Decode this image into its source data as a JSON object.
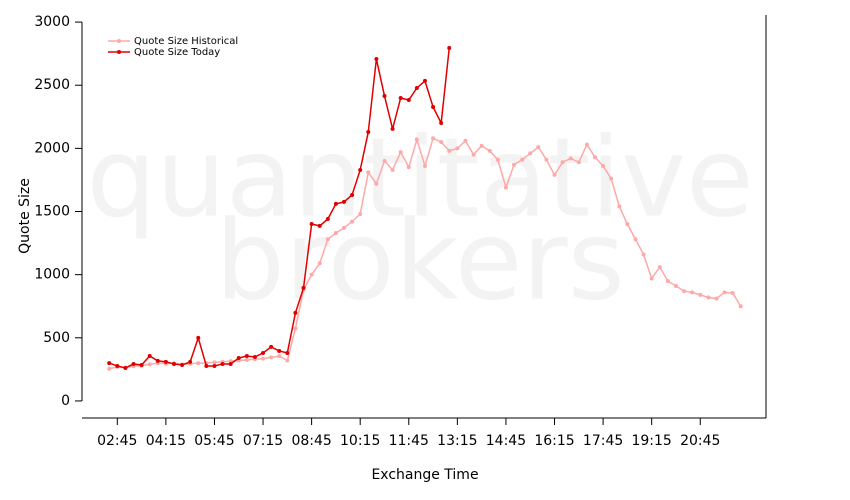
{
  "chart_data": {
    "type": "line",
    "watermark": [
      "quantitative",
      "brokers"
    ],
    "x_label": "Exchange Time",
    "y_label": "Quote Size",
    "x": [
      2.5,
      2.75,
      3,
      3.25,
      3.5,
      3.75,
      4,
      4.25,
      4.5,
      4.75,
      5,
      5.25,
      5.5,
      5.75,
      6,
      6.25,
      6.5,
      6.75,
      7,
      7.25,
      7.5,
      7.75,
      8,
      8.25,
      8.5,
      8.75,
      9,
      9.25,
      9.5,
      9.75,
      10,
      10.25,
      10.5,
      10.75,
      11,
      11.25,
      11.5,
      11.75,
      12,
      12.25,
      12.5,
      12.75,
      13,
      13.25,
      13.5,
      13.75,
      14,
      14.25,
      14.5,
      14.75,
      15,
      15.25,
      15.5,
      15.75,
      16,
      16.25,
      16.5,
      16.75,
      17,
      17.25,
      17.5,
      17.75,
      18,
      18.25,
      18.5,
      18.75,
      19,
      19.25,
      19.5,
      19.75,
      20,
      20.25,
      20.5,
      20.75,
      21,
      21.25,
      21.5,
      21.75,
      22
    ],
    "series": [
      {
        "name": "Quote Size Historical",
        "color": "#ffa8a8",
        "values": [
          255,
          270,
          265,
          275,
          280,
          290,
          300,
          295,
          300,
          290,
          295,
          300,
          300,
          305,
          310,
          315,
          320,
          325,
          330,
          335,
          345,
          355,
          320,
          575,
          880,
          1000,
          1090,
          1280,
          1330,
          1370,
          1420,
          1480,
          1810,
          1720,
          1900,
          1830,
          1970,
          1850,
          2070,
          1860,
          2080,
          2050,
          1980,
          2000,
          2060,
          1950,
          2020,
          1980,
          1910,
          1690,
          1870,
          1910,
          1960,
          2010,
          1910,
          1790,
          1890,
          1920,
          1890,
          2030,
          1930,
          1860,
          1760,
          1540,
          1400,
          1280,
          1160,
          970,
          1060,
          950,
          910,
          870,
          860,
          840,
          820,
          810,
          860,
          855,
          750
        ]
      },
      {
        "name": "Quote Size Today",
        "color": "#e00000",
        "values": [
          300,
          277,
          261,
          293,
          285,
          356,
          317,
          309,
          293,
          285,
          309,
          499,
          277,
          277,
          293,
          293,
          340,
          356,
          348,
          380,
          428,
          396,
          380,
          697,
          895,
          1401,
          1386,
          1441,
          1560,
          1576,
          1631,
          1829,
          2130,
          2708,
          2415,
          2154,
          2399,
          2383,
          2478,
          2534,
          2328,
          2201,
          2795,
          null,
          null,
          null,
          null,
          null,
          null,
          null,
          null,
          null,
          null,
          null,
          null,
          null,
          null,
          null,
          null,
          null,
          null,
          null,
          null,
          null,
          null,
          null,
          null,
          null,
          null,
          null,
          null,
          null,
          null,
          null,
          null,
          null,
          null,
          null,
          null
        ]
      }
    ],
    "xlim": [
      1.66,
      22.78
    ],
    "xticks": [
      {
        "value": 2.75,
        "label": "02:45"
      },
      {
        "value": 4.25,
        "label": "04:15"
      },
      {
        "value": 5.75,
        "label": "05:45"
      },
      {
        "value": 7.25,
        "label": "07:15"
      },
      {
        "value": 8.75,
        "label": "08:45"
      },
      {
        "value": 10.25,
        "label": "10:15"
      },
      {
        "value": 11.75,
        "label": "11:45"
      },
      {
        "value": 13.25,
        "label": "13:15"
      },
      {
        "value": 14.75,
        "label": "14:45"
      },
      {
        "value": 16.25,
        "label": "16:15"
      },
      {
        "value": 17.75,
        "label": "17:45"
      },
      {
        "value": 19.25,
        "label": "19:15"
      },
      {
        "value": 20.75,
        "label": "20:45"
      }
    ],
    "ylim": [
      -135,
      3056
    ],
    "yticks": [
      0,
      500,
      1000,
      1500,
      2000,
      2500,
      3000
    ],
    "legend_position": "top-left"
  }
}
